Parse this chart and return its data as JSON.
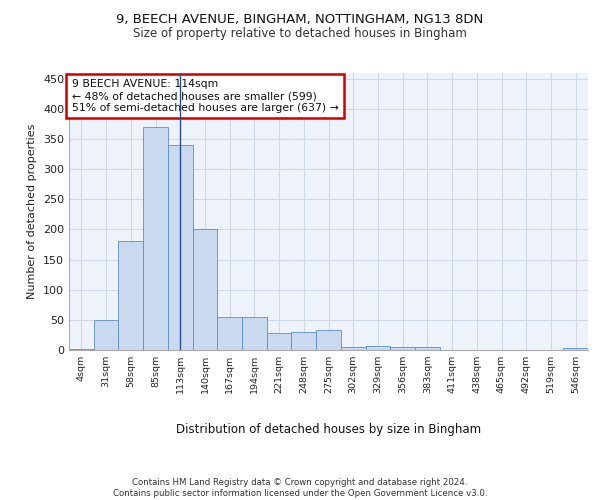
{
  "title1": "9, BEECH AVENUE, BINGHAM, NOTTINGHAM, NG13 8DN",
  "title2": "Size of property relative to detached houses in Bingham",
  "xlabel": "Distribution of detached houses by size in Bingham",
  "ylabel": "Number of detached properties",
  "bar_labels": [
    "4sqm",
    "31sqm",
    "58sqm",
    "85sqm",
    "113sqm",
    "140sqm",
    "167sqm",
    "194sqm",
    "221sqm",
    "248sqm",
    "275sqm",
    "302sqm",
    "329sqm",
    "356sqm",
    "383sqm",
    "411sqm",
    "438sqm",
    "465sqm",
    "492sqm",
    "519sqm",
    "546sqm"
  ],
  "bar_values": [
    2,
    50,
    181,
    370,
    340,
    200,
    55,
    55,
    28,
    30,
    33,
    5,
    6,
    5,
    5,
    0,
    0,
    0,
    0,
    0,
    3
  ],
  "bar_color": "#c9d9f0",
  "bar_edge_color": "#5b8fc9",
  "grid_color": "#d0d8e8",
  "background_color": "#eef2fa",
  "property_bin_index": 4,
  "vline_color": "#2b4d8c",
  "annotation_text": "9 BEECH AVENUE: 114sqm\n← 48% of detached houses are smaller (599)\n51% of semi-detached houses are larger (637) →",
  "annotation_box_color": "white",
  "annotation_box_edge": "#cc0000",
  "footnote": "Contains HM Land Registry data © Crown copyright and database right 2024.\nContains public sector information licensed under the Open Government Licence v3.0.",
  "ylim": [
    0,
    460
  ],
  "yticks": [
    0,
    50,
    100,
    150,
    200,
    250,
    300,
    350,
    400,
    450
  ]
}
